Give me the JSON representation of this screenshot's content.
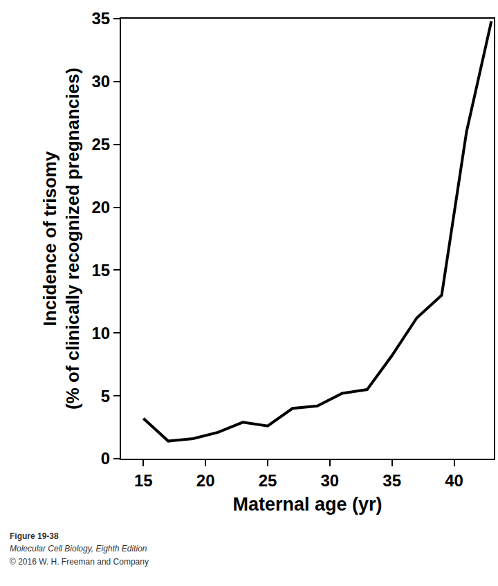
{
  "chart_data": {
    "type": "line",
    "xlabel": "Maternal age (yr)",
    "ylabel": "Incidence of trisomy\n(% of clinically recognized pregnancies)",
    "x": [
      15,
      17,
      19,
      21,
      23,
      25,
      27,
      29,
      31,
      33,
      35,
      37,
      39,
      41,
      43
    ],
    "values": [
      3.2,
      1.4,
      1.6,
      2.1,
      2.9,
      2.6,
      4.0,
      4.2,
      5.2,
      5.5,
      8.2,
      11.2,
      13.0,
      26.0,
      34.8
    ],
    "color": "#000000",
    "xlim": [
      13.2,
      43.2
    ],
    "xticks": [
      15,
      20,
      25,
      30,
      35,
      40
    ],
    "ylim": [
      0,
      35
    ],
    "yticks": [
      0,
      5,
      10,
      15,
      20,
      25,
      30,
      35
    ],
    "grid": false,
    "annotations": [
      "Figure 19-38",
      "Molecular Cell Biology, Eighth Edition",
      "© 2016 W. H. Freeman and Company"
    ]
  }
}
